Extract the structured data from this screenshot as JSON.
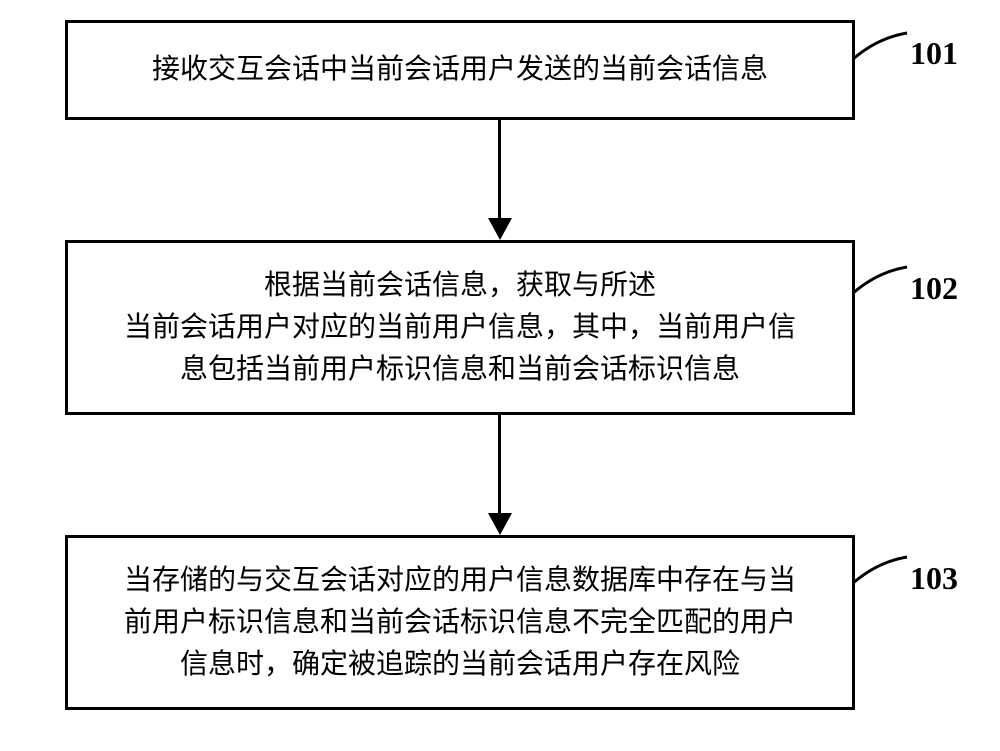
{
  "flowchart": {
    "type": "flowchart",
    "background_color": "#ffffff",
    "border_color": "#000000",
    "text_color": "#000000",
    "font_family": "SimSun",
    "nodes": [
      {
        "id": "step1",
        "label": "101",
        "text": "接收交互会话中当前会话用户发送的当前会话信息",
        "border_width": 3,
        "font_size": 28
      },
      {
        "id": "step2",
        "label": "102",
        "text": "根据当前会话信息，获取与所述\n当前会话用户对应的当前用户信息，其中，当前用户信\n息包括当前用户标识信息和当前会话标识信息",
        "border_width": 3,
        "font_size": 28
      },
      {
        "id": "step3",
        "label": "103",
        "text": "当存储的与交互会话对应的用户信息数据库中存在与当\n前用户标识信息和当前会话标识信息不完全匹配的用户\n信息时，确定被追踪的当前会话用户存在风险",
        "border_width": 3,
        "font_size": 28
      }
    ],
    "edges": [
      {
        "from": "step1",
        "to": "step2",
        "arrow_color": "#000000"
      },
      {
        "from": "step2",
        "to": "step3",
        "arrow_color": "#000000"
      }
    ],
    "labels": {
      "step1": "101",
      "step2": "102",
      "step3": "103"
    },
    "label_fontsize": 32,
    "label_fontweight": "bold"
  }
}
